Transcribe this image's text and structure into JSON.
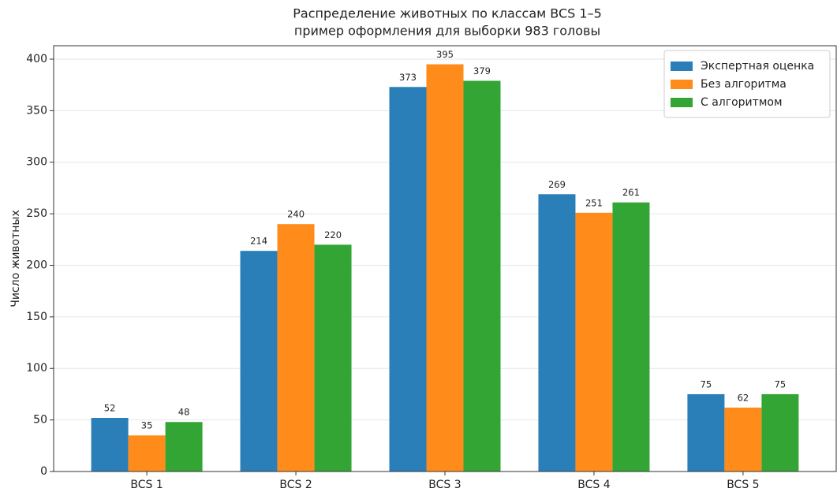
{
  "chart_data": {
    "type": "bar",
    "title": "Распределение животных по классам BCS 1–5",
    "subtitle": "пример оформления для выборки 983 головы",
    "y_label": "Число животных",
    "categories": [
      "BCS 1",
      "BCS 2",
      "BCS 3",
      "BCS 4",
      "BCS 5"
    ],
    "series": [
      {
        "name": "Экспертная оценка",
        "color": "#2b7fb8",
        "values": [
          52,
          214,
          373,
          269,
          75
        ]
      },
      {
        "name": "Без алгоритма",
        "color": "#ff8c1a",
        "values": [
          35,
          240,
          395,
          251,
          62
        ]
      },
      {
        "name": "С алгоритмом",
        "color": "#33a534",
        "values": [
          48,
          220,
          379,
          261,
          75
        ]
      }
    ],
    "ylim": [
      0,
      413
    ],
    "yticks": [
      0,
      50,
      100,
      150,
      200,
      250,
      300,
      350,
      400
    ],
    "grid": true,
    "legend": "upper right"
  }
}
